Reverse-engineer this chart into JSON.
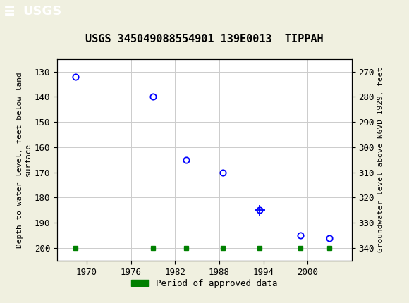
{
  "title": "USGS 345049088554901 139E0013  TIPPAH",
  "ylabel_left": "Depth to water level, feet below land\nsurface",
  "ylabel_right": "Groundwater level above NGVD 1929, feet",
  "ylim_left": [
    125,
    205
  ],
  "ylim_right": [
    265,
    345
  ],
  "xlim": [
    1966,
    2006
  ],
  "yticks_left": [
    130,
    140,
    150,
    160,
    170,
    180,
    190,
    200
  ],
  "yticks_right": [
    340,
    330,
    320,
    310,
    300,
    290,
    280,
    270
  ],
  "xticks": [
    1970,
    1976,
    1982,
    1988,
    1994,
    2000
  ],
  "data_x": [
    1968.5,
    1979,
    1983.5,
    1988.5,
    1993.5,
    1999,
    2003
  ],
  "data_y": [
    132,
    140,
    165,
    170,
    185,
    195,
    196
  ],
  "has_cross": [
    false,
    false,
    false,
    false,
    true,
    false,
    false
  ],
  "green_x": [
    1968.5,
    1979,
    1983.5,
    1988.5,
    1993.5,
    1999,
    2003
  ],
  "green_y": [
    200,
    200,
    200,
    200,
    200,
    200,
    200
  ],
  "header_color": "#1a6e3c",
  "marker_color": "#0000ff",
  "marker_size": 6,
  "grid_color": "#cccccc",
  "bg_color": "#f0f0e0",
  "plot_bg": "#ffffff",
  "legend_label": "Period of approved data",
  "legend_color": "#008000",
  "title_fontsize": 11,
  "tick_fontsize": 9,
  "label_fontsize": 8
}
